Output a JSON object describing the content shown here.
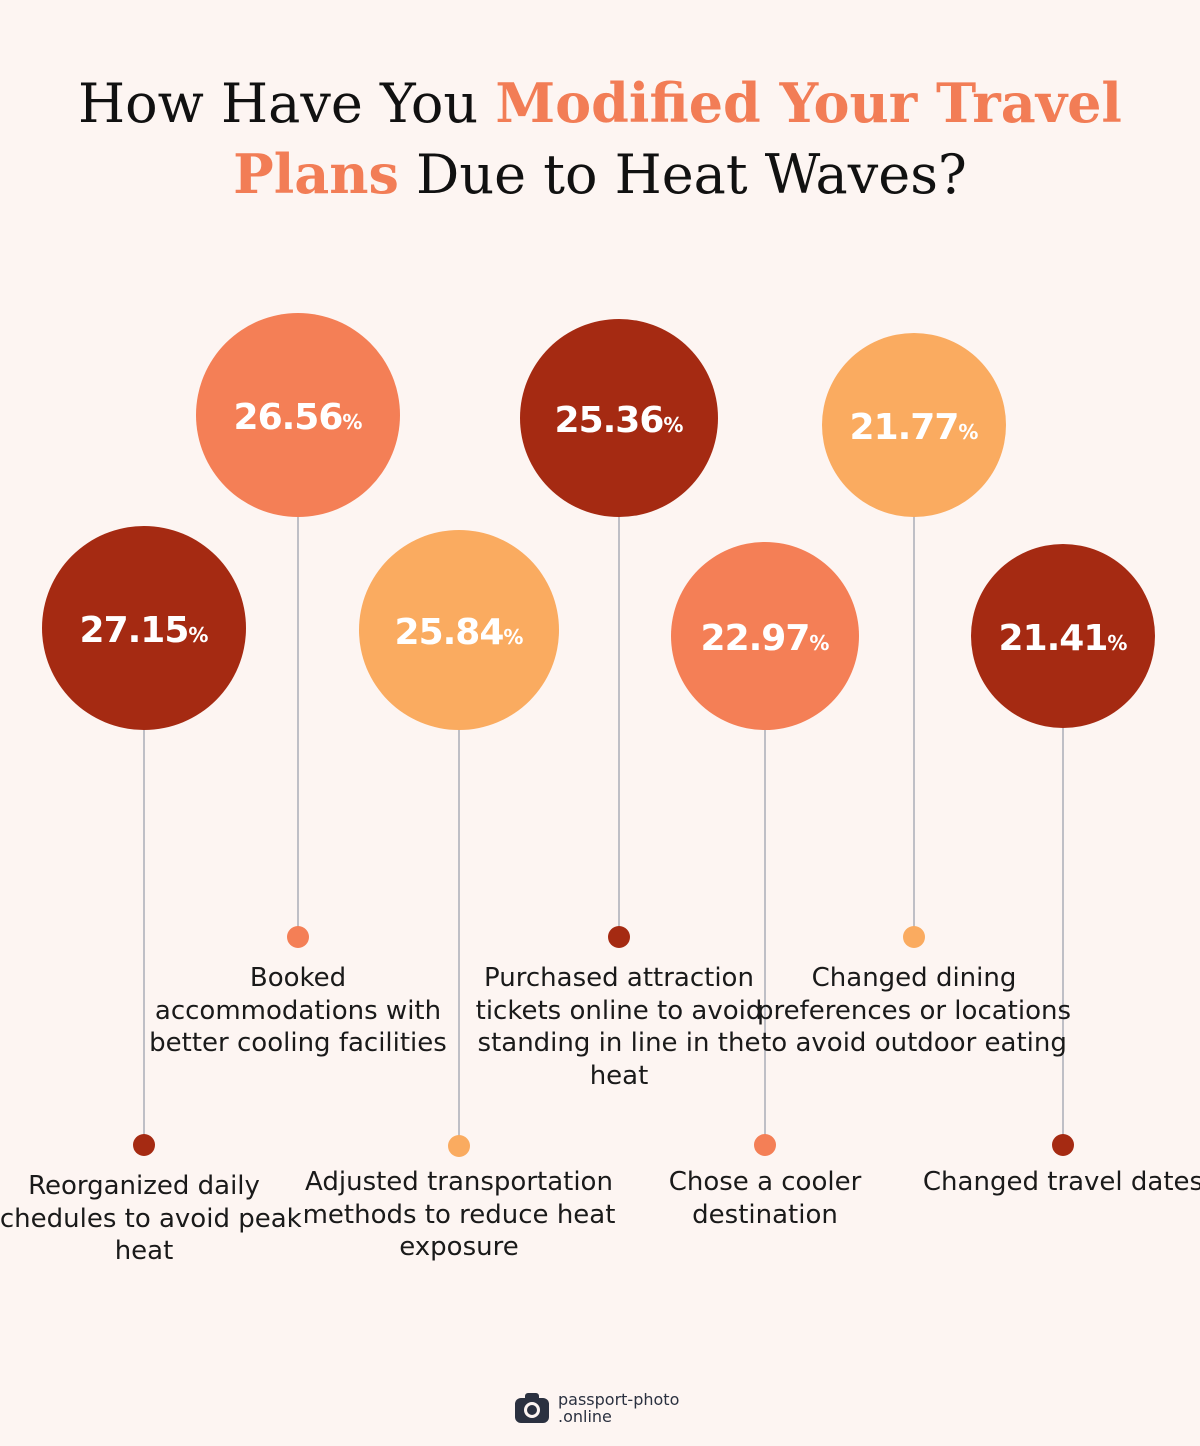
{
  "title": {
    "part1": "How Have You ",
    "highlight1": "Modified Your Travel",
    "highlight2": "Plans",
    "part2": " Due to Heat Waves?"
  },
  "colors": {
    "dark_red": "#a52a12",
    "coral": "#f47f56",
    "light_orange": "#faab60",
    "stem": "#bfbfc6",
    "title_accent": "#f27d56"
  },
  "chart_data": {
    "type": "bubble-lollipop",
    "unit": "%",
    "items": [
      {
        "label": "Reorganized daily schedules to avoid peak heat",
        "value": 27.15,
        "color": "#a52a12"
      },
      {
        "label": "Booked accommodations with better cooling facilities",
        "value": 26.56,
        "color": "#f47f56"
      },
      {
        "label": "Adjusted transportation methods to reduce heat exposure",
        "value": 25.84,
        "color": "#faab60"
      },
      {
        "label": "Purchased attraction tickets online to avoid standing in line in the heat",
        "value": 25.36,
        "color": "#a52a12"
      },
      {
        "label": "Chose a cooler destination",
        "value": 22.97,
        "color": "#f47f56"
      },
      {
        "label": "Changed dining preferences or locations to avoid outdoor eating",
        "value": 21.77,
        "color": "#faab60"
      },
      {
        "label": "Changed travel dates",
        "value": 21.41,
        "color": "#a52a12"
      }
    ]
  },
  "logo": {
    "icon": "camera-icon",
    "line1": "passport-photo",
    "line2": ".online"
  }
}
